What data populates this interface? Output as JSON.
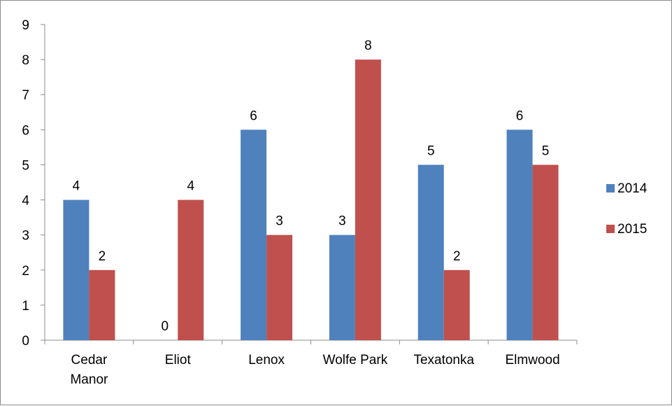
{
  "chart_data": {
    "type": "bar",
    "title": "",
    "xlabel": "",
    "ylabel": "",
    "ylim": [
      0,
      9
    ],
    "yticks": [
      0,
      1,
      2,
      3,
      4,
      5,
      6,
      7,
      8,
      9
    ],
    "grid": false,
    "legend_position": "right",
    "categories": [
      [
        "Cedar",
        "Manor"
      ],
      [
        "Eliot"
      ],
      [
        "Lenox"
      ],
      [
        "Wolfe Park"
      ],
      [
        "Texatonka"
      ],
      [
        "Elmwood"
      ]
    ],
    "series": [
      {
        "name": "2014",
        "color": "#4f81bd",
        "values": [
          4,
          0,
          6,
          3,
          5,
          6
        ]
      },
      {
        "name": "2015",
        "color": "#c0504d",
        "values": [
          2,
          4,
          3,
          8,
          2,
          5
        ]
      }
    ],
    "data_labels": true
  }
}
